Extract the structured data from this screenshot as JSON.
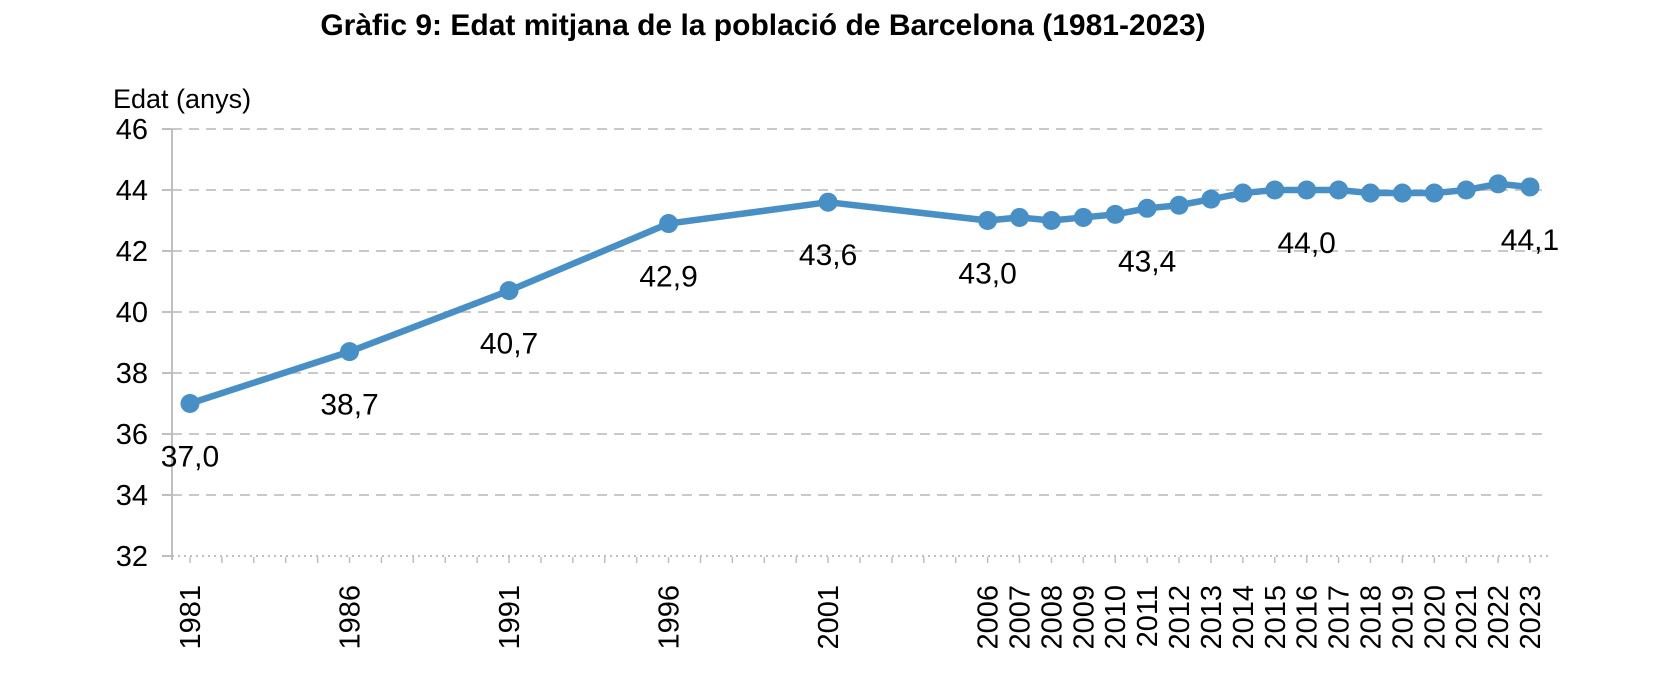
{
  "chart": {
    "title": "Gràfic 9: Edat mitjana de la població de Barcelona (1981-2023)",
    "y_axis_title": "Edat (anys)"
  },
  "chart_data": {
    "type": "line",
    "title": "Gràfic 9: Edat mitjana de la població de Barcelona (1981-2023)",
    "xlabel": "",
    "ylabel": "Edat (anys)",
    "x": [
      1981,
      1986,
      1991,
      1996,
      2001,
      2006,
      2007,
      2008,
      2009,
      2010,
      2011,
      2012,
      2013,
      2014,
      2015,
      2016,
      2017,
      2018,
      2019,
      2020,
      2021,
      2022,
      2023
    ],
    "y": [
      37.0,
      38.7,
      40.7,
      42.9,
      43.6,
      43.0,
      43.1,
      43.0,
      43.1,
      43.2,
      43.4,
      43.5,
      43.7,
      43.9,
      44.0,
      44.0,
      44.0,
      43.9,
      43.9,
      43.9,
      44.0,
      44.2,
      44.1
    ],
    "x_tick_labels": [
      "1981",
      "1986",
      "1991",
      "1996",
      "2001",
      "2006",
      "2007",
      "2008",
      "2009",
      "2010",
      "2011",
      "2012",
      "2013",
      "2014",
      "2015",
      "2016",
      "2017",
      "2018",
      "2019",
      "2020",
      "2021",
      "2022",
      "2023"
    ],
    "y_ticks": [
      46,
      44,
      42,
      40,
      38,
      36,
      34,
      32
    ],
    "ylim": [
      32,
      46
    ],
    "xlim": [
      1981,
      2023
    ],
    "grid": true,
    "legend": false,
    "data_labels": [
      {
        "x": 1981,
        "text": "37,0"
      },
      {
        "x": 1986,
        "text": "38,7"
      },
      {
        "x": 1991,
        "text": "40,7"
      },
      {
        "x": 1996,
        "text": "42,9"
      },
      {
        "x": 2001,
        "text": "43,6"
      },
      {
        "x": 2006,
        "text": "43,0"
      },
      {
        "x": 2011,
        "text": "43,4"
      },
      {
        "x": 2016,
        "text": "44,0"
      },
      {
        "x": 2023,
        "text": "44,1"
      }
    ],
    "line_color": "#478FC5",
    "gridline_color": "#C9C9C9",
    "axis_color": "#BFBFBF",
    "text_color": "#000000",
    "background_color": "#FFFFFF"
  }
}
